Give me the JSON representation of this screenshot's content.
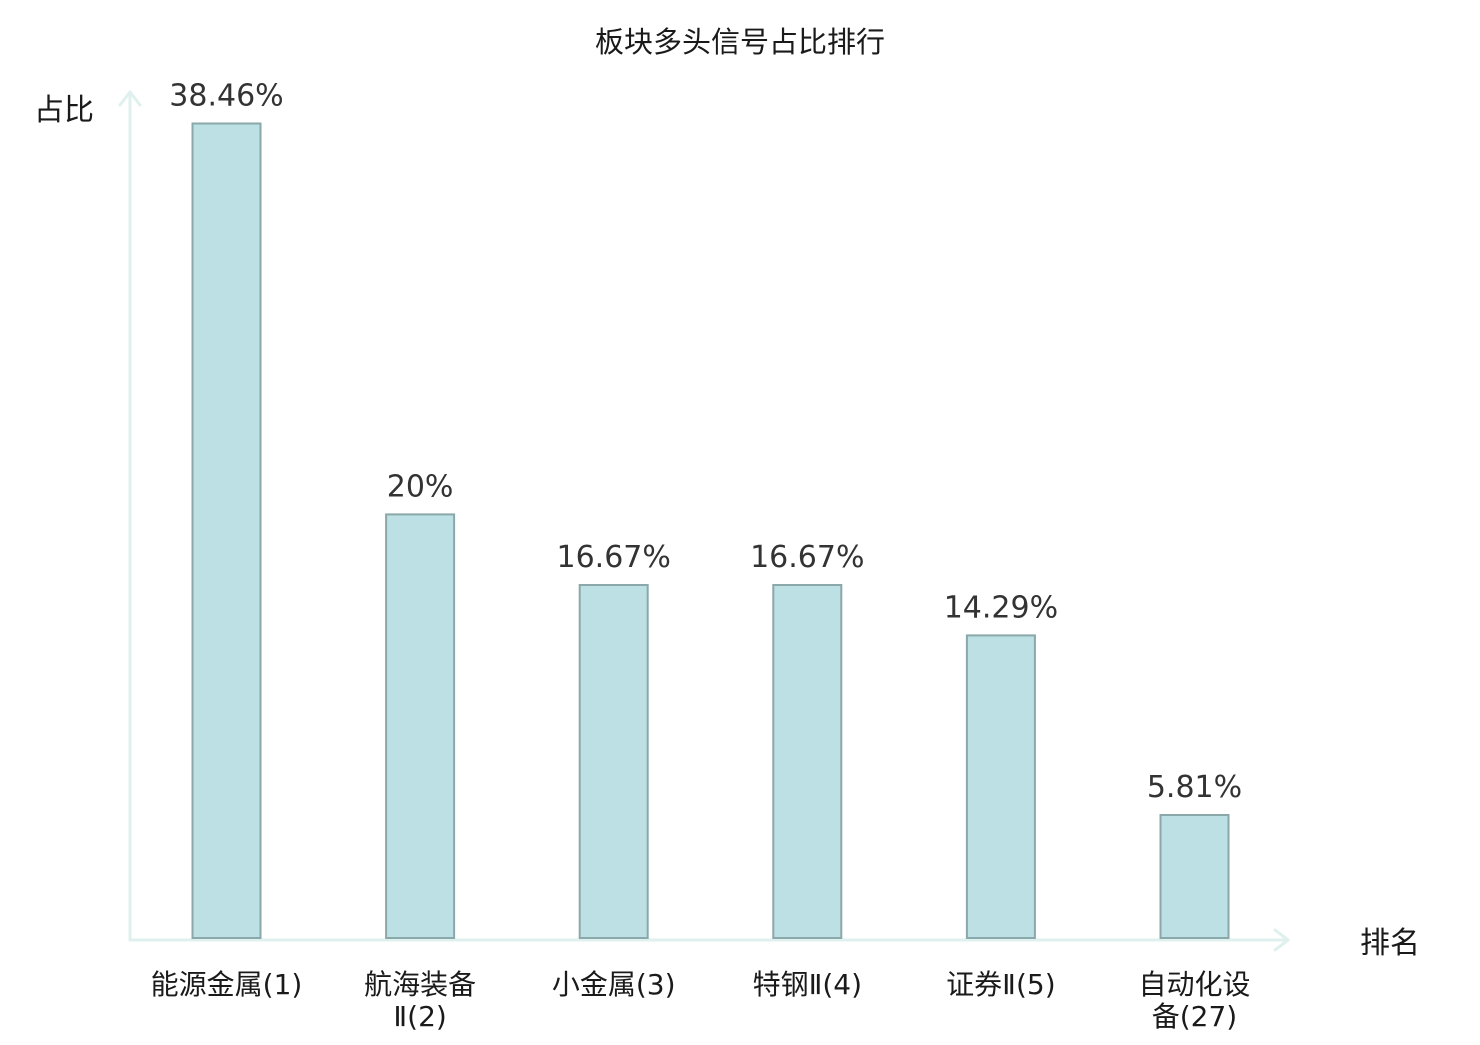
{
  "chart_data": {
    "type": "bar",
    "title": "板块多头信号占比排行",
    "ylabel": "占比",
    "xlabel": "排名",
    "unit": "%",
    "ylim": [
      0,
      40
    ],
    "grid": false,
    "categories": [
      {
        "lines": [
          "能源金属(1)"
        ],
        "highlight": false
      },
      {
        "lines": [
          "航海装备",
          "Ⅱ(2)"
        ],
        "highlight": false
      },
      {
        "lines": [
          "小金属(3)"
        ],
        "highlight": false
      },
      {
        "lines": [
          "特钢Ⅱ(4)"
        ],
        "highlight": false
      },
      {
        "lines": [
          "证券Ⅱ(5)"
        ],
        "highlight": false
      },
      {
        "lines": [
          "自动化设",
          "备(27)"
        ],
        "highlight": true
      }
    ],
    "values": [
      38.46,
      20,
      16.67,
      16.67,
      14.29,
      5.81
    ],
    "value_labels": [
      "38.46%",
      "20%",
      "16.67%",
      "16.67%",
      "14.29%",
      "5.81%"
    ]
  },
  "colors": {
    "bar_fill": "#bce0e3",
    "bar_stroke": "#8aa7aa",
    "axis": "#dff1ee",
    "text": "#1a1a1a",
    "value_text": "#333333",
    "highlight": "#e8151b"
  }
}
